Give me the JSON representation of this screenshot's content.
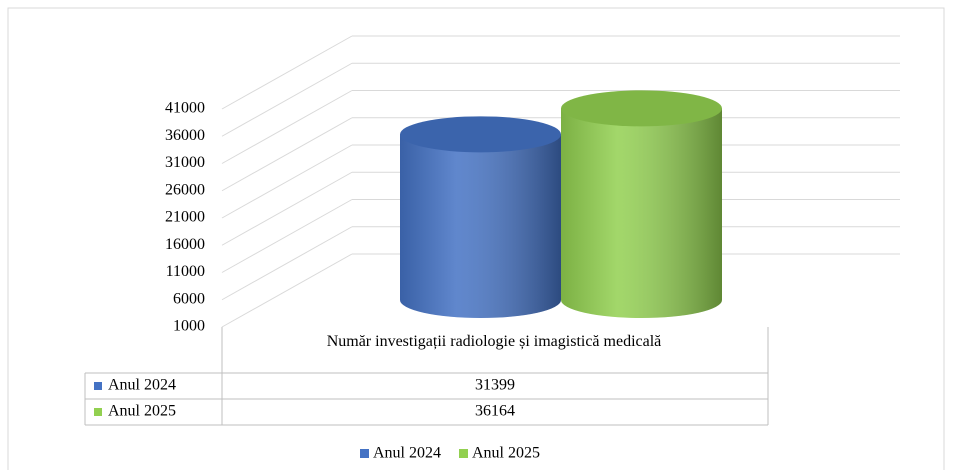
{
  "chart_data": {
    "type": "bar",
    "categories": [
      "Număr investigații  radiologie și imagistică medicală"
    ],
    "series": [
      {
        "name": "Anul 2024",
        "color": "#4472c4",
        "values": [
          31399
        ]
      },
      {
        "name": "Anul 2025",
        "color": "#92d050",
        "values": [
          36164
        ]
      }
    ],
    "ylim": [
      1000,
      41000
    ],
    "yticks": [
      1000,
      6000,
      11000,
      16000,
      21000,
      26000,
      31000,
      36000,
      41000
    ],
    "grid": true,
    "data_table": true,
    "legend": "bottom"
  }
}
